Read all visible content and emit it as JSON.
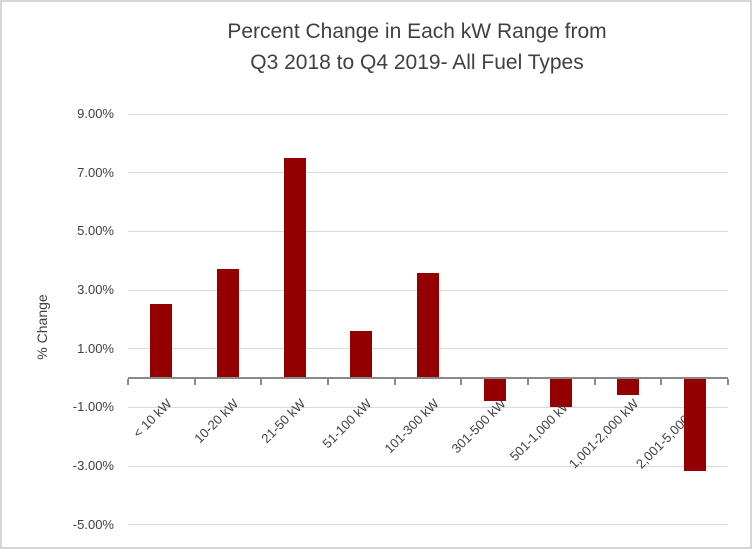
{
  "chart_data": {
    "type": "bar",
    "title": "Percent Change in Each kW Range from Q3 2018 to Q4 2019- All Fuel Types",
    "title_lines": [
      "Percent Change in Each kW Range from",
      "Q3 2018 to Q4 2019- All Fuel Types"
    ],
    "xlabel": "",
    "ylabel": "% Change",
    "categories": [
      "< 10 kW",
      "10-20 kW",
      "21-50 kW",
      "51-100 kW",
      "101-300 kW",
      "301-500 kW",
      "501-1,000 kW",
      "1,001-2,000 kW",
      "2,001-5,000 kW"
    ],
    "values": [
      2.5,
      3.7,
      7.5,
      1.6,
      3.55,
      -0.8,
      -1.0,
      -0.6,
      -3.2
    ],
    "ylim": [
      -5,
      9
    ],
    "yticks": [
      9,
      7,
      5,
      3,
      1,
      -1,
      -3,
      -5
    ],
    "ytick_labels": [
      "9.00%",
      "7.00%",
      "5.00%",
      "3.00%",
      "1.00%",
      "-1.00%",
      "-3.00%",
      "-5.00%"
    ],
    "grid": true,
    "legend": false,
    "colors": {
      "bar": "#940000",
      "gridline": "#d9d9d9",
      "axis": "#898989",
      "text": "#404040",
      "frame_border": "#d6d6d6"
    }
  }
}
